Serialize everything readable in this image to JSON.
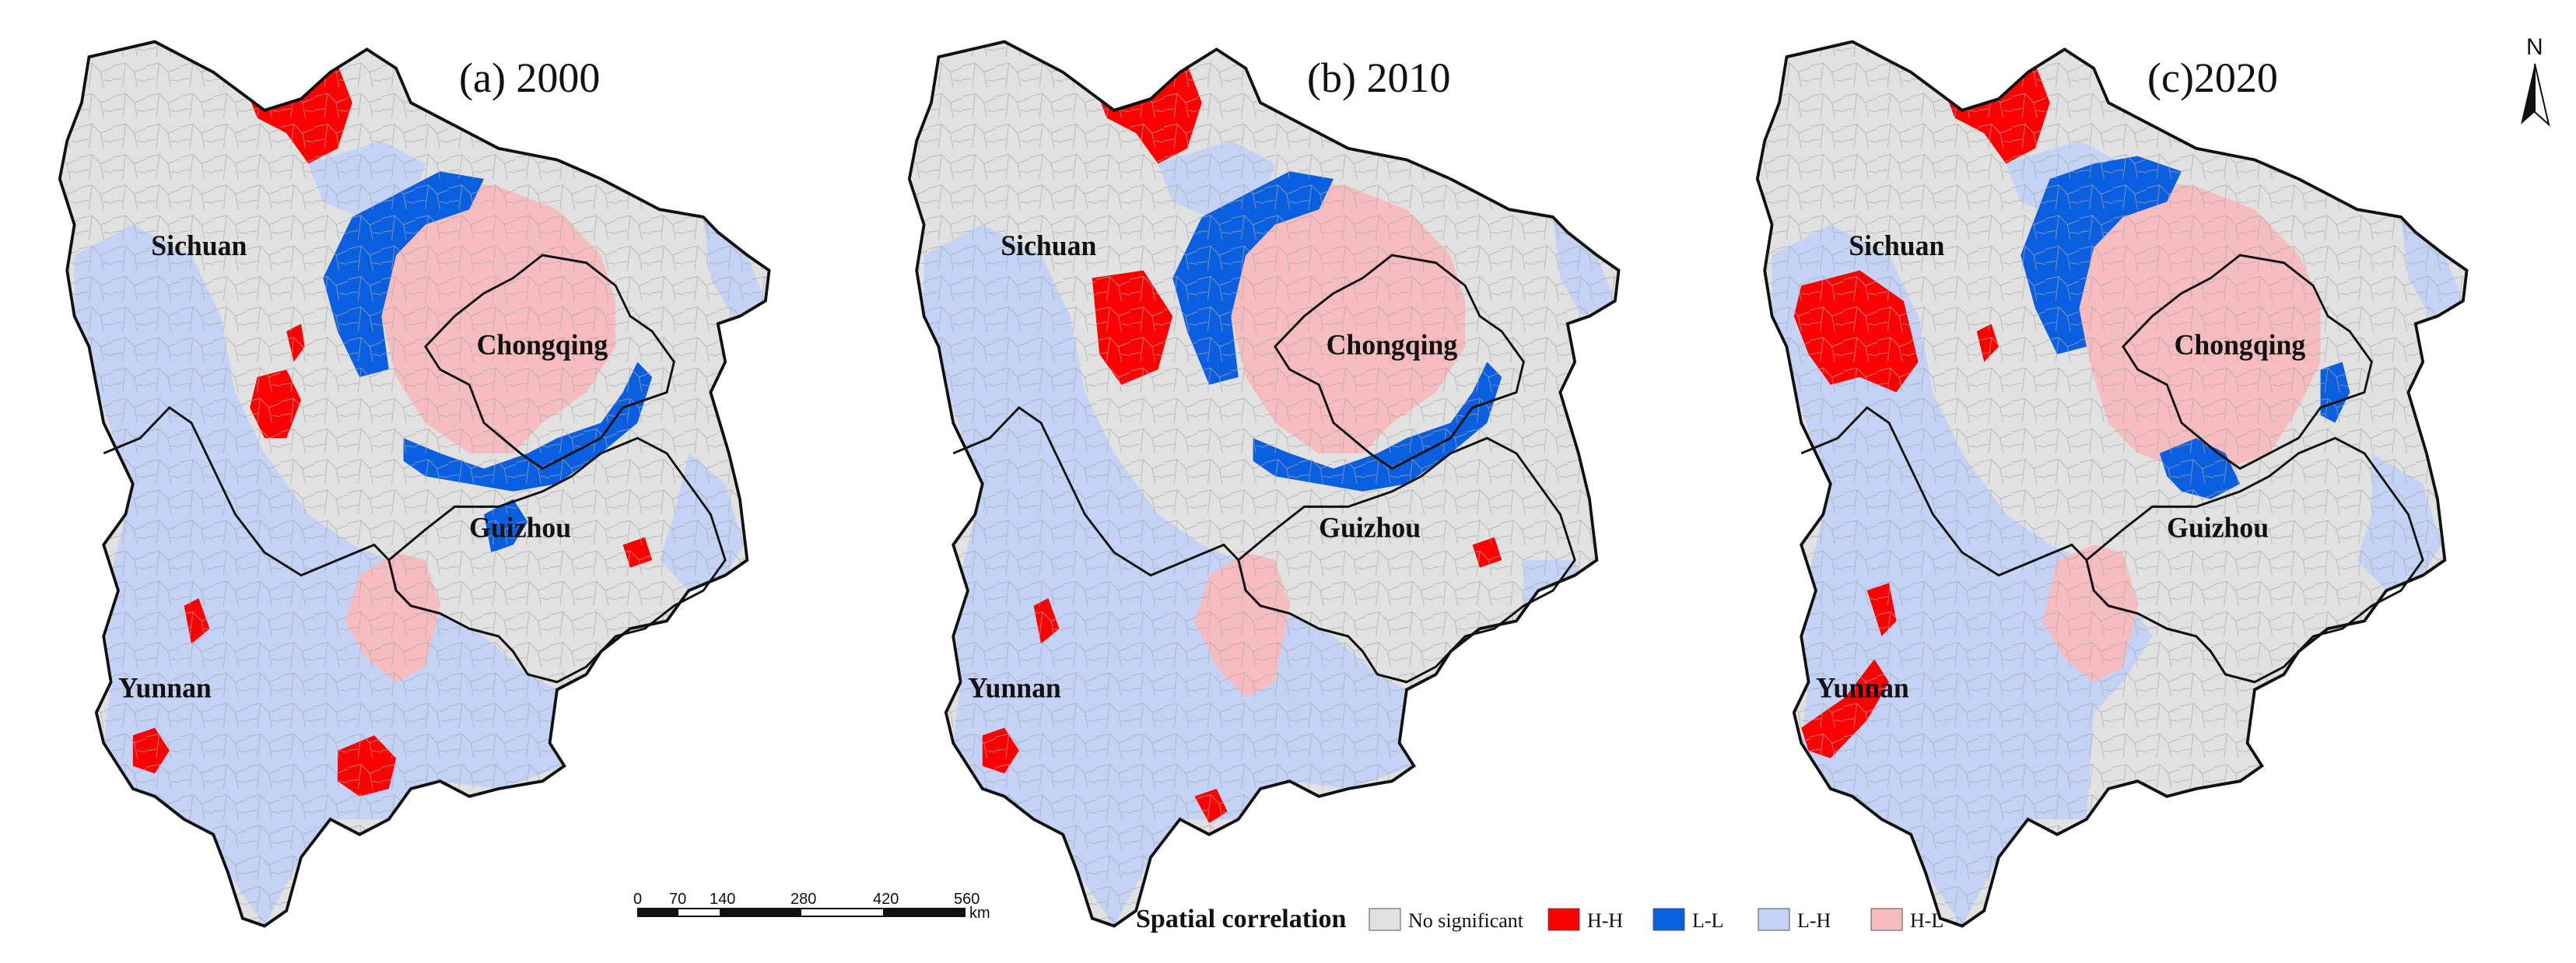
{
  "panels": [
    {
      "title": "(a) 2000"
    },
    {
      "title": "(b) 2010"
    },
    {
      "title": "(c)2020"
    }
  ],
  "provinces": {
    "sichuan": "Sichuan",
    "chongqing": "Chongqing",
    "guizhou": "Guizhou",
    "yunnan": "Yunnan"
  },
  "north_arrow": {
    "label": "N"
  },
  "scale_bar": {
    "ticks": [
      "0",
      "70",
      "140",
      "280",
      "420",
      "560"
    ],
    "unit": "km"
  },
  "legend": {
    "title": "Spatial correlation",
    "items": [
      {
        "label": "No significant",
        "color": "#e1e1e1"
      },
      {
        "label": "H-H",
        "color": "#ff0000"
      },
      {
        "label": "L-L",
        "color": "#0a5ee0"
      },
      {
        "label": "L-H",
        "color": "#c3d2f5"
      },
      {
        "label": "H-L",
        "color": "#f7bcc0"
      }
    ]
  },
  "colors": {
    "no_significant": "#e1e1e1",
    "hh": "#ff0000",
    "ll": "#0a5ee0",
    "lh": "#c3d2f5",
    "hl": "#f7bcc0",
    "border": "#111111"
  }
}
